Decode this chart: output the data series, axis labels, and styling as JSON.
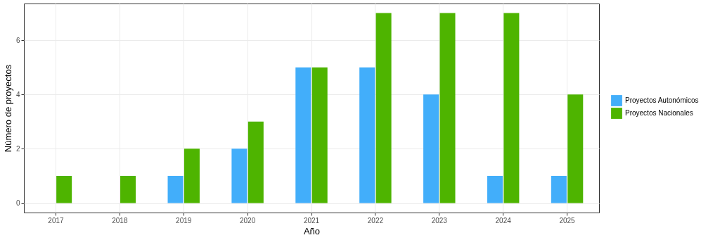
{
  "chart_data": {
    "type": "bar",
    "xlabel": "Año",
    "ylabel": "Número de proyectos",
    "categories": [
      "2017",
      "2018",
      "2019",
      "2020",
      "2021",
      "2022",
      "2023",
      "2024",
      "2025"
    ],
    "series": [
      {
        "name": "Proyectos Autonómicos",
        "color": "#42aefa",
        "values": [
          0,
          0,
          1,
          2,
          5,
          5,
          4,
          1,
          1
        ]
      },
      {
        "name": "Proyectos Nacionales",
        "color": "#4eb400",
        "values": [
          1,
          1,
          2,
          3,
          5,
          7,
          7,
          7,
          4
        ]
      }
    ],
    "ylim": [
      -0.35,
      7.35
    ],
    "yticks": [
      0,
      2,
      4,
      6
    ],
    "grid": true,
    "legend": "right"
  }
}
